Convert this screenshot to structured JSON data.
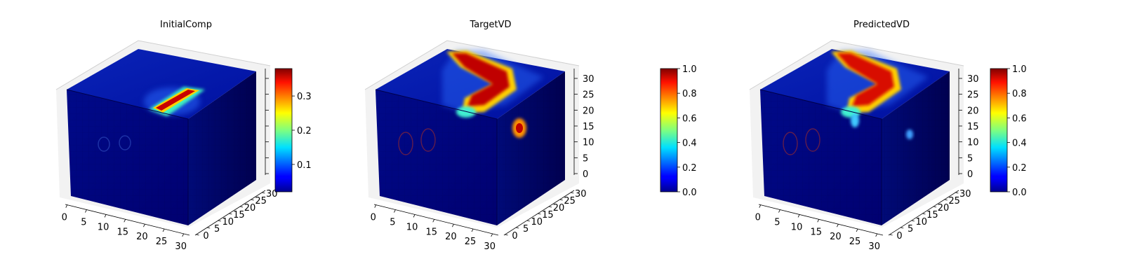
{
  "chart_data": [
    {
      "type": "voxel3d",
      "title": "InitialComp",
      "grid_size": 32,
      "axes": {
        "x": {
          "ticks": [
            0,
            5,
            10,
            15,
            20,
            25,
            30
          ]
        },
        "y": {
          "ticks": [
            0,
            5,
            10,
            15,
            20,
            25,
            30
          ]
        },
        "z": {
          "ticks": []
        }
      },
      "colormap": "jet",
      "colorbar": {
        "range": [
          0.02,
          0.38
        ],
        "ticks": [
          0.1,
          0.2,
          0.3
        ],
        "tick_labels": [
          "0.1",
          "0.2",
          "0.3"
        ]
      },
      "features": [
        {
          "face": "top",
          "desc": "bright diagonal bar",
          "peak_value": 0.37
        },
        {
          "face": "front",
          "desc": "faint circular outlines",
          "peak_value": 0.06
        }
      ]
    },
    {
      "type": "voxel3d",
      "title": "TargetVD",
      "grid_size": 32,
      "axes": {
        "x": {
          "ticks": [
            0,
            5,
            10,
            15,
            20,
            25,
            30
          ]
        },
        "y": {
          "ticks": [
            0,
            5,
            10,
            15,
            20,
            25,
            30
          ]
        },
        "z": {
          "ticks": [
            0,
            5,
            10,
            15,
            20,
            25,
            30
          ]
        }
      },
      "colormap": "jet",
      "colorbar": {
        "range": [
          0.0,
          1.0
        ],
        "ticks": [
          0.0,
          0.2,
          0.4,
          0.6,
          0.8,
          1.0
        ],
        "tick_labels": [
          "0.0",
          "0.2",
          "0.4",
          "0.6",
          "0.8",
          "1.0"
        ]
      },
      "features": [
        {
          "face": "top",
          "desc": "wide L-shaped hot band",
          "peak_value": 1.0
        },
        {
          "face": "side",
          "desc": "small hot ring",
          "peak_value": 0.8
        },
        {
          "face": "front",
          "desc": "faint circular outlines",
          "peak_value": 0.15
        }
      ]
    },
    {
      "type": "voxel3d",
      "title": "PredictedVD",
      "grid_size": 32,
      "axes": {
        "x": {
          "ticks": [
            0,
            5,
            10,
            15,
            20,
            25,
            30
          ]
        },
        "y": {
          "ticks": [
            0,
            5,
            10,
            15,
            20,
            25,
            30
          ]
        },
        "z": {
          "ticks": [
            0,
            5,
            10,
            15,
            20,
            25,
            30
          ]
        }
      },
      "colormap": "jet",
      "colorbar": {
        "range": [
          0.0,
          1.0
        ],
        "ticks": [
          0.0,
          0.2,
          0.4,
          0.6,
          0.8,
          1.0
        ],
        "tick_labels": [
          "0.0",
          "0.2",
          "0.4",
          "0.6",
          "0.8",
          "1.0"
        ]
      },
      "features": [
        {
          "face": "top",
          "desc": "L-shaped hot band",
          "peak_value": 0.95
        },
        {
          "face": "side",
          "desc": "small faint spot",
          "peak_value": 0.4
        },
        {
          "face": "front",
          "desc": "faint circular outlines",
          "peak_value": 0.12
        }
      ]
    }
  ]
}
